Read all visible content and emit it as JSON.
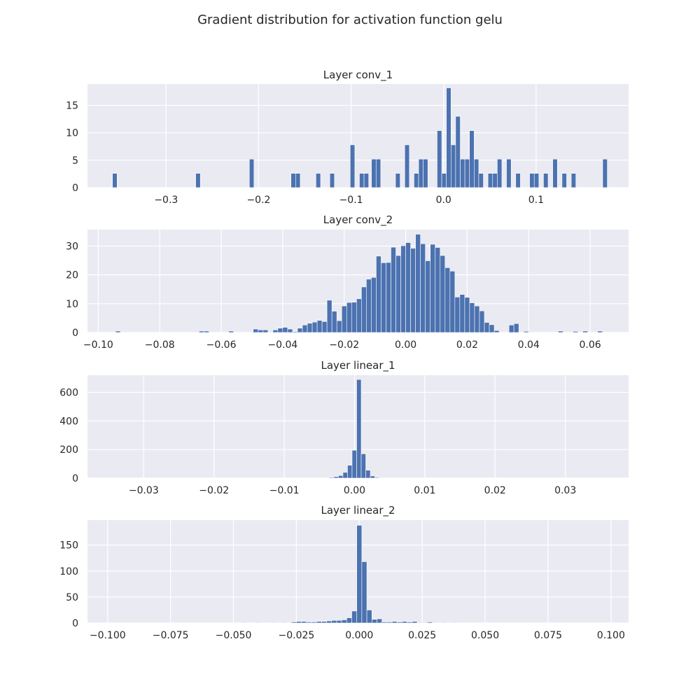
{
  "figure": {
    "title": "Gradient distribution for activation function gelu"
  },
  "style": {
    "bar_color": "#4c72b0",
    "panel_background": "#eaeaf2",
    "grid_color": "#ffffff"
  },
  "chart_data": [
    {
      "type": "bar",
      "title": "Layer conv_1",
      "grid": true,
      "xlim": [
        -0.385,
        0.2
      ],
      "ylim": [
        0,
        18.9
      ],
      "xticks": [
        -0.3,
        -0.2,
        -0.1,
        0.0,
        0.1
      ],
      "xtick_labels": [
        "−0.3",
        "−0.2",
        "−0.1",
        "0.0",
        "0.1"
      ],
      "yticks": [
        0,
        5,
        10,
        15
      ],
      "ytick_labels": [
        "0",
        "5",
        "10",
        "15"
      ],
      "bin_width": 0.005,
      "bins_x": [
        -0.358,
        -0.268,
        -0.21,
        -0.165,
        -0.16,
        -0.138,
        -0.123,
        -0.101,
        -0.091,
        -0.086,
        -0.078,
        -0.073,
        -0.052,
        -0.042,
        -0.032,
        -0.027,
        -0.022,
        -0.007,
        -0.002,
        0.003,
        0.008,
        0.013,
        0.018,
        0.023,
        0.028,
        0.033,
        0.038,
        0.048,
        0.053,
        0.058,
        0.068,
        0.078,
        0.093,
        0.098,
        0.108,
        0.118,
        0.128,
        0.138,
        0.172
      ],
      "values": [
        2.6,
        2.6,
        5.2,
        2.6,
        2.6,
        2.6,
        2.6,
        7.8,
        2.6,
        2.6,
        5.2,
        5.2,
        2.6,
        7.8,
        2.6,
        5.2,
        5.2,
        10.4,
        2.6,
        18.2,
        7.8,
        13.0,
        5.2,
        5.2,
        10.4,
        5.2,
        2.6,
        2.6,
        2.6,
        5.2,
        5.2,
        2.6,
        2.6,
        2.6,
        2.6,
        5.2,
        2.6,
        2.6,
        5.2
      ]
    },
    {
      "type": "bar",
      "title": "Layer conv_2",
      "grid": true,
      "xlim": [
        -0.1035,
        0.0725
      ],
      "ylim": [
        0,
        35.7
      ],
      "xticks": [
        -0.1,
        -0.08,
        -0.06,
        -0.04,
        -0.02,
        0.0,
        0.02,
        0.04,
        0.06
      ],
      "xtick_labels": [
        "−0.10",
        "−0.08",
        "−0.06",
        "−0.04",
        "−0.02",
        "0.00",
        "0.02",
        "0.04",
        "0.06"
      ],
      "yticks": [
        0,
        10,
        20,
        30
      ],
      "ytick_labels": [
        "0",
        "10",
        "20",
        "30"
      ],
      "bin_width": 0.0016,
      "bins_x": [
        -0.0944,
        -0.0672,
        -0.0656,
        -0.0576,
        -0.0496,
        -0.048,
        -0.0464,
        -0.0432,
        -0.0416,
        -0.04,
        -0.0384,
        -0.0368,
        -0.0352,
        -0.0336,
        -0.032,
        -0.0304,
        -0.0288,
        -0.0272,
        -0.0256,
        -0.024,
        -0.0224,
        -0.0208,
        -0.0192,
        -0.0176,
        -0.016,
        -0.0144,
        -0.0128,
        -0.0112,
        -0.0096,
        -0.008,
        -0.0064,
        -0.0048,
        -0.0032,
        -0.0016,
        0.0,
        0.0016,
        0.0032,
        0.0048,
        0.0064,
        0.008,
        0.0096,
        0.0112,
        0.0128,
        0.0144,
        0.016,
        0.0176,
        0.0192,
        0.0208,
        0.0224,
        0.024,
        0.0256,
        0.0272,
        0.0288,
        0.0336,
        0.0352,
        0.0384,
        0.0496,
        0.0544,
        0.0576,
        0.0624
      ],
      "values": [
        0.5,
        0.5,
        0.5,
        0.5,
        1.2,
        0.9,
        0.9,
        0.9,
        1.5,
        1.8,
        1.2,
        0.3,
        1.5,
        2.6,
        3.2,
        3.6,
        4.2,
        3.8,
        11.2,
        7.4,
        4.1,
        9.2,
        10.4,
        10.5,
        11.7,
        15.8,
        18.5,
        19.1,
        26.5,
        24.2,
        24.3,
        29.6,
        26.7,
        30.1,
        31.2,
        29.2,
        34.1,
        30.8,
        24.9,
        30.6,
        29.5,
        26.7,
        22.5,
        21.3,
        12.3,
        13.2,
        12.2,
        10.3,
        9.2,
        7.5,
        3.5,
        2.7,
        0.7,
        2.6,
        3.1,
        0.4,
        0.5,
        0.4,
        0.5,
        0.5
      ]
    },
    {
      "type": "bar",
      "title": "Layer linear_1",
      "grid": true,
      "xlim": [
        -0.038,
        0.039
      ],
      "ylim": [
        0,
        720
      ],
      "xticks": [
        -0.03,
        -0.02,
        -0.01,
        0.0,
        0.01,
        0.02,
        0.03
      ],
      "xtick_labels": [
        "−0.03",
        "−0.02",
        "−0.01",
        "0.00",
        "0.01",
        "0.02",
        "0.03"
      ],
      "yticks": [
        0,
        200,
        400,
        600
      ],
      "ytick_labels": [
        "0",
        "200",
        "400",
        "600"
      ],
      "bin_width": 0.00065,
      "bins_x": [
        -0.0036,
        -0.00295,
        -0.0023,
        -0.00165,
        -0.001,
        -0.00035,
        0.0003,
        0.00095,
        0.0016,
        0.00225,
        0.0029
      ],
      "values": [
        5,
        10,
        18,
        40,
        90,
        195,
        690,
        170,
        55,
        15,
        5
      ]
    },
    {
      "type": "bar",
      "title": "Layer linear_2",
      "grid": true,
      "xlim": [
        -0.108,
        0.107
      ],
      "ylim": [
        0,
        198
      ],
      "xticks": [
        -0.1,
        -0.075,
        -0.05,
        -0.025,
        0.0,
        0.025,
        0.05,
        0.075,
        0.1
      ],
      "xtick_labels": [
        "−0.100",
        "−0.075",
        "−0.050",
        "−0.025",
        "0.000",
        "0.025",
        "0.050",
        "0.075",
        "0.100"
      ],
      "yticks": [
        0,
        50,
        100,
        150
      ],
      "ytick_labels": [
        "0",
        "50",
        "100",
        "150"
      ],
      "bin_width": 0.002,
      "bins_x": [
        -0.047,
        -0.041,
        -0.035,
        -0.031,
        -0.027,
        -0.025,
        -0.023,
        -0.021,
        -0.019,
        -0.017,
        -0.015,
        -0.013,
        -0.011,
        -0.009,
        -0.007,
        -0.005,
        -0.003,
        -0.001,
        0.001,
        0.003,
        0.005,
        0.007,
        0.009,
        0.011,
        0.013,
        0.015,
        0.017,
        0.019,
        0.021,
        0.023,
        0.025,
        0.027,
        0.029,
        0.033,
        0.037
      ],
      "values": [
        1,
        1,
        1,
        1,
        2,
        3,
        3,
        2,
        2,
        3,
        3,
        4,
        5,
        5,
        6,
        10,
        23,
        188,
        118,
        25,
        7,
        8,
        2,
        2,
        3,
        2,
        3,
        2,
        3,
        1,
        1,
        2,
        1,
        1,
        1
      ]
    }
  ]
}
